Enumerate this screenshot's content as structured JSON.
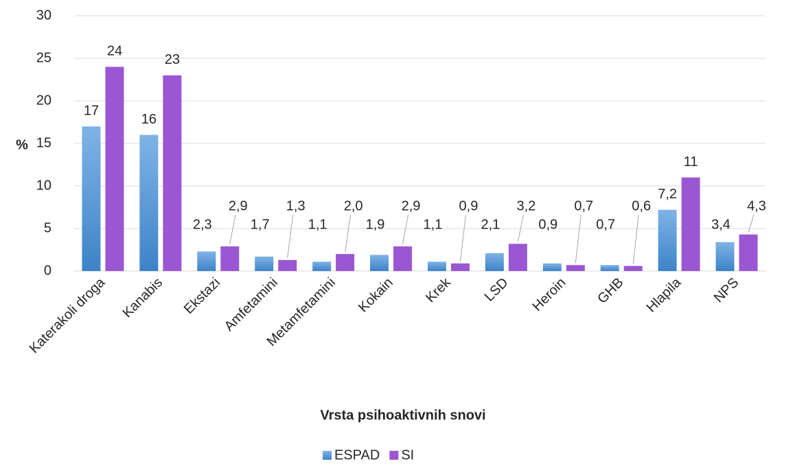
{
  "chart_data": {
    "type": "bar",
    "x_label": "Vrsta psihoaktivnih snovi",
    "y_label": "%",
    "categories": [
      "Katerakoli droga",
      "Kanabis",
      "Ekstazi",
      "Amfetamini",
      "Metamfetamini",
      "Kokain",
      "Krek",
      "LSD",
      "Heroin",
      "GHB",
      "Hlapila",
      "NPS"
    ],
    "series": [
      {
        "name": "ESPAD",
        "color": "#5b9bd5",
        "values": [
          17,
          16,
          2.3,
          1.7,
          1.1,
          1.9,
          1.1,
          2.1,
          0.9,
          0.7,
          7.2,
          3.4
        ],
        "value_labels": [
          "17",
          "16",
          "2,3",
          "1,7",
          "1,1",
          "1,9",
          "1,1",
          "2,1",
          "0,9",
          "0,7",
          "7,2",
          "3,4"
        ]
      },
      {
        "name": "SI",
        "color": "#9b57d3",
        "values": [
          24,
          23,
          2.9,
          1.3,
          2.0,
          2.9,
          0.9,
          3.2,
          0.7,
          0.6,
          11,
          4.3
        ],
        "value_labels": [
          "24",
          "23",
          "2,9",
          "1,3",
          "2,0",
          "2,9",
          "0,9",
          "3,2",
          "0,7",
          "0,6",
          "11",
          "4,3"
        ]
      }
    ],
    "ylim": [
      0,
      30
    ],
    "yticks": [
      0,
      5,
      10,
      15,
      20,
      25,
      30
    ],
    "grid": true,
    "legend": "bottom"
  }
}
